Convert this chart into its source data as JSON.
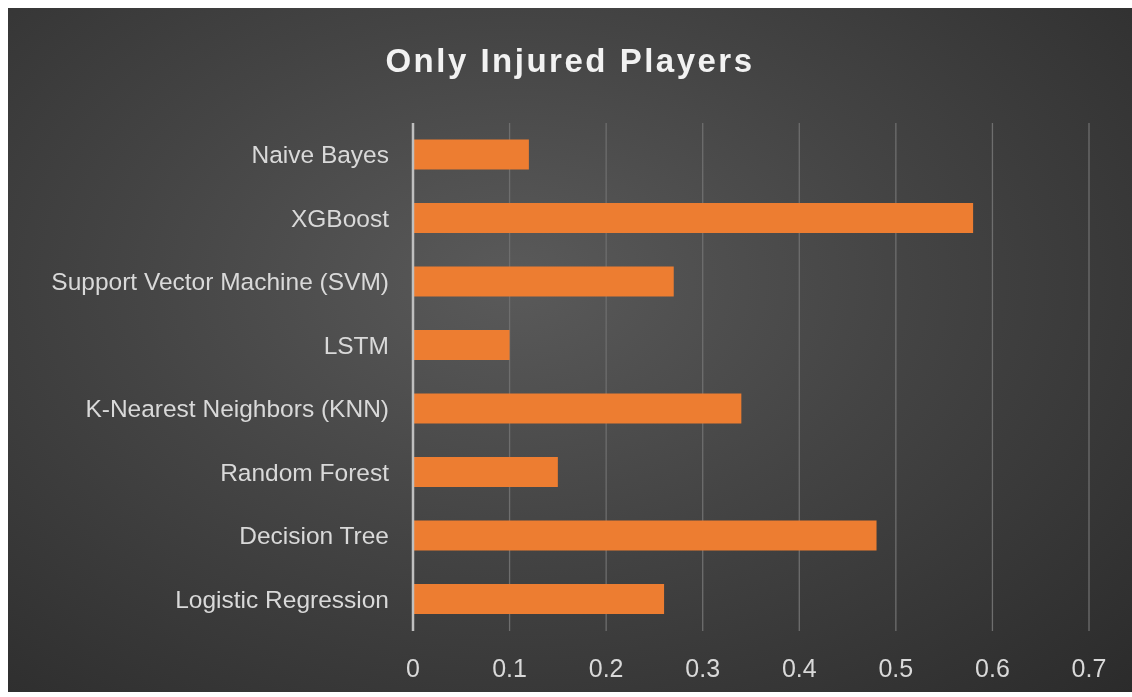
{
  "chart_data": {
    "type": "bar",
    "orientation": "horizontal",
    "title": "Only Injured Players",
    "categories": [
      "Naive Bayes",
      "XGBoost",
      "Support Vector Machine (SVM)",
      "LSTM",
      "K-Nearest Neighbors (KNN)",
      "Random Forest",
      "Decision Tree",
      "Logistic Regression"
    ],
    "values": [
      0.12,
      0.58,
      0.27,
      0.1,
      0.34,
      0.15,
      0.48,
      0.26
    ],
    "color": "#ed7d31",
    "xlim": [
      0,
      0.7
    ],
    "xticks": [
      0,
      0.1,
      0.2,
      0.3,
      0.4,
      0.5,
      0.6,
      0.7
    ],
    "grid": "x"
  }
}
